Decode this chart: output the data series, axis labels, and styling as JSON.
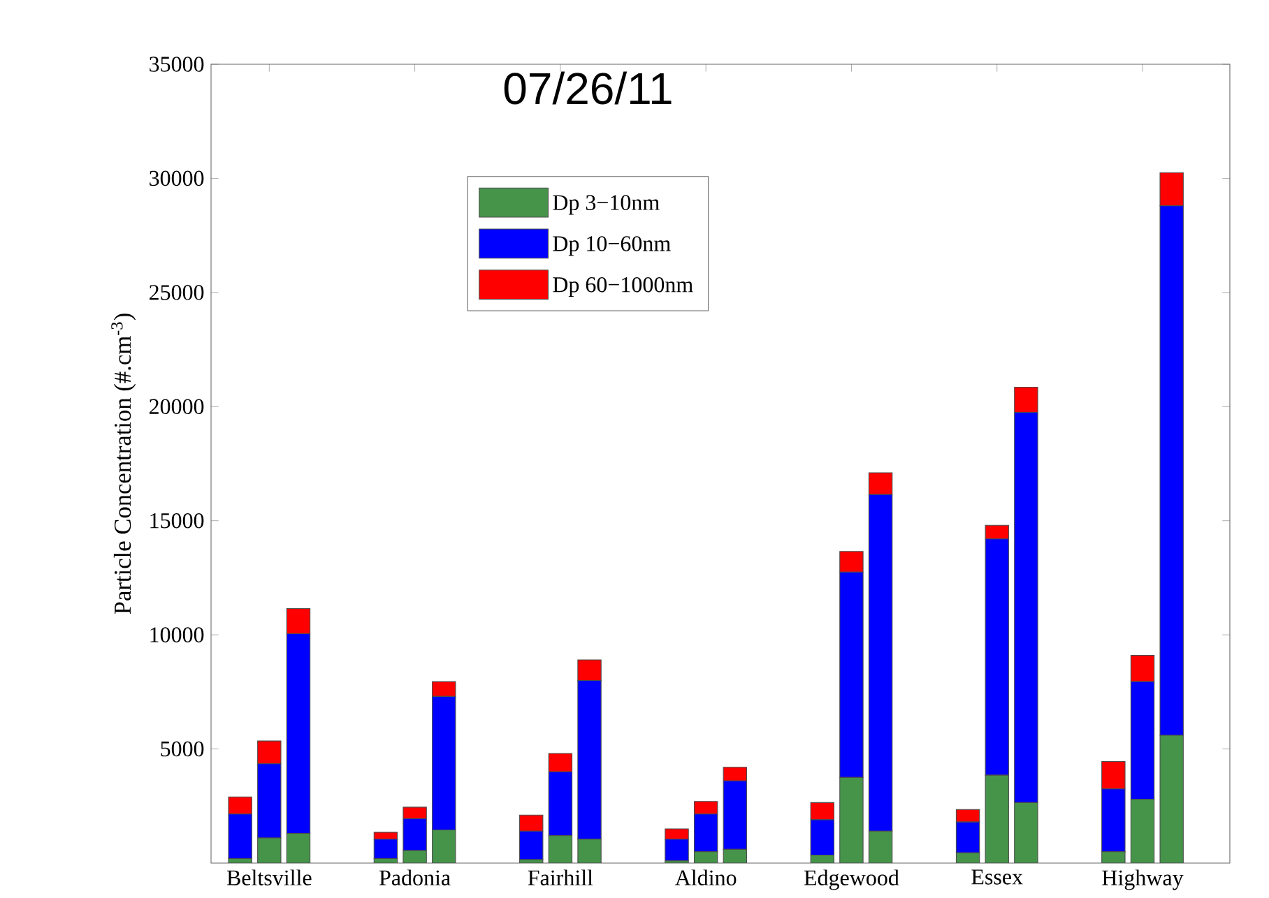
{
  "chart_data": {
    "type": "bar",
    "title": "07/26/11",
    "ylabel": "Particle Concentration (#.cm$^{-3}$)",
    "categories": [
      null,
      "Beltsville",
      null,
      null,
      null,
      null,
      "Padonia",
      null,
      null,
      null,
      null,
      "Fairhill",
      null,
      null,
      null,
      null,
      "Aldino",
      null,
      null,
      null,
      null,
      "Edgewood",
      null,
      null,
      null,
      null,
      "Essex",
      null,
      null,
      null,
      null,
      "Highway",
      null,
      null,
      null
    ],
    "stacked": true,
    "legend": "top",
    "ylim": [
      0,
      35000
    ],
    "yticks": [
      5000,
      10000,
      15000,
      20000,
      25000,
      30000,
      35000
    ],
    "series": [
      {
        "name": "Dp 3−10nm",
        "color": "#45944a",
        "values": [
          200,
          1100,
          1300,
          null,
          null,
          200,
          550,
          1450,
          null,
          null,
          150,
          1200,
          1050,
          null,
          null,
          100,
          500,
          600,
          null,
          null,
          350,
          3750,
          1400,
          null,
          null,
          450,
          3850,
          2650,
          null,
          null,
          500,
          2800,
          5600,
          null,
          null
        ]
      },
      {
        "name": "Dp 10−60nm",
        "color": "#0000ff",
        "values": [
          1950,
          3250,
          8750,
          null,
          null,
          850,
          1400,
          5850,
          null,
          null,
          1250,
          2800,
          6950,
          null,
          null,
          950,
          1650,
          3000,
          null,
          null,
          1550,
          9000,
          14750,
          null,
          null,
          1350,
          10350,
          17100,
          null,
          null,
          2750,
          5150,
          23200,
          null,
          null
        ]
      },
      {
        "name": "Dp 60−1000nm",
        "color": "#ff0000",
        "values": [
          750,
          1000,
          1100,
          null,
          null,
          300,
          500,
          650,
          null,
          null,
          700,
          800,
          900,
          null,
          null,
          450,
          550,
          600,
          null,
          null,
          750,
          900,
          950,
          null,
          null,
          550,
          600,
          1100,
          null,
          null,
          1200,
          1150,
          1450,
          null,
          null
        ]
      }
    ]
  }
}
